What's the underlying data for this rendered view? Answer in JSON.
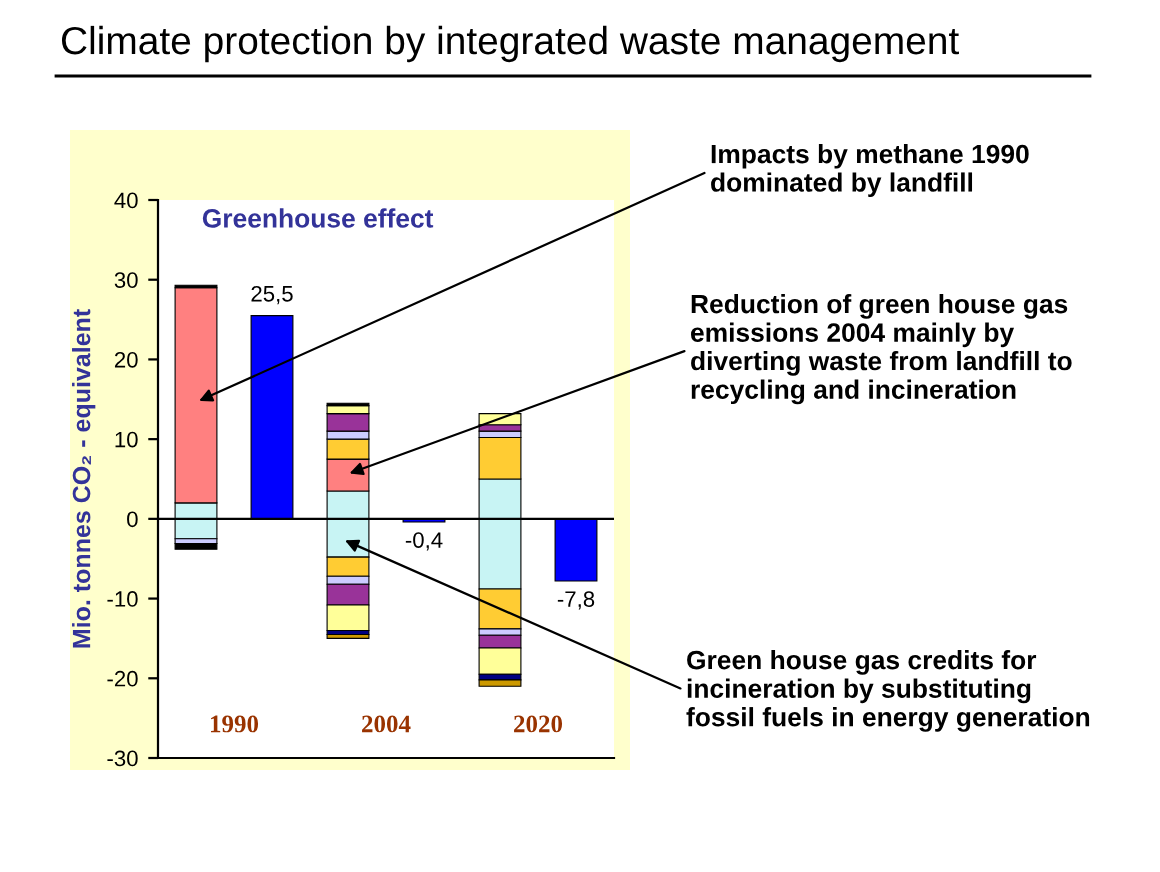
{
  "chart_data": {
    "type": "bar",
    "stacked": true,
    "title": "Climate protection by integrated waste management",
    "subtitle": "Greenhouse effect",
    "ylabel": "Mio. tonnes CO₂ - equivalent",
    "categories": [
      "1990",
      null,
      "2004",
      null,
      "2020",
      null
    ],
    "series": [
      {
        "color": "#c8f4f4",
        "values": [
          2,
          null,
          3.5,
          null,
          5,
          null
        ]
      },
      {
        "color": "#ff8080",
        "values": [
          27,
          null,
          4,
          null,
          null,
          null
        ]
      },
      {
        "color": "#ffcc33",
        "values": [
          null,
          null,
          2.5,
          null,
          5.2,
          null
        ]
      },
      {
        "color": "#ccccff",
        "values": [
          null,
          null,
          1,
          null,
          0.8,
          null
        ]
      },
      {
        "color": "#993399",
        "values": [
          null,
          null,
          2.2,
          null,
          0.8,
          null
        ]
      },
      {
        "color": "#ffff99",
        "values": [
          null,
          null,
          1,
          null,
          1.4,
          null
        ]
      },
      {
        "color": "#000000",
        "values": [
          0.3,
          null,
          0.3,
          null,
          null,
          null
        ]
      },
      {
        "color": "#c8f4f4",
        "values": [
          -2.5,
          null,
          -4.8,
          null,
          -8.8,
          null
        ]
      },
      {
        "color": "#ffcc33",
        "values": [
          null,
          null,
          -2.4,
          null,
          -5,
          null
        ]
      },
      {
        "color": "#ccccff",
        "values": [
          -0.6,
          null,
          -1,
          null,
          -0.8,
          null
        ]
      },
      {
        "color": "#993399",
        "values": [
          null,
          null,
          -2.6,
          null,
          -1.6,
          null
        ]
      },
      {
        "color": "#ffff99",
        "values": [
          null,
          null,
          -3.2,
          null,
          -3.3,
          null
        ]
      },
      {
        "color": "#000080",
        "values": [
          null,
          null,
          -0.5,
          null,
          -0.7,
          null
        ]
      },
      {
        "color": "#cc9900",
        "values": [
          null,
          null,
          -0.5,
          null,
          -0.8,
          null
        ]
      },
      {
        "color": "#000000",
        "values": [
          -0.7,
          null,
          null,
          null,
          null,
          null
        ]
      },
      {
        "color": "#0000ff",
        "values": [
          null,
          25.5,
          null,
          -0.4,
          null,
          -7.8
        ],
        "value_labels": [
          null,
          "25,5",
          null,
          "-0,4",
          null,
          "-7,8"
        ]
      }
    ],
    "ylim": [
      -30,
      40
    ],
    "yticks": [
      -30,
      -20,
      -10,
      0,
      10,
      20,
      30,
      40
    ],
    "grid": false,
    "legend": false,
    "ref_lines": [
      {
        "axis": "y",
        "value": 0,
        "color": "#000000"
      }
    ],
    "annotations": [
      "Impacts by methane 1990\ndominated by landfill",
      "Reduction of green house gas\nemissions 2004 mainly by\ndiverting waste from landfill to\nrecycling and incineration",
      "Green house gas credits for\nincineration by substituting\nfossil fuels in energy generation"
    ]
  }
}
